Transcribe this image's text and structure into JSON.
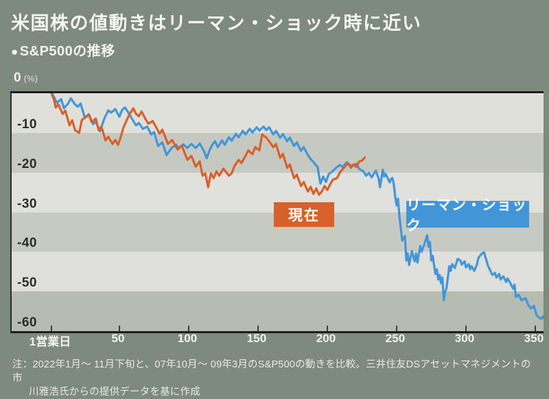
{
  "header": {
    "title": "米国株の値動きはリーマン・ショック時に近い",
    "subtitle_bullet": "●",
    "subtitle": "S&P500の推移"
  },
  "axis": {
    "y_zero": "0",
    "y_unit": "(%)",
    "y_tick_labels": [
      "-10",
      "-20",
      "-30",
      "-40",
      "-50",
      "-60"
    ],
    "x_tick_labels": [
      "1営業日",
      "50",
      "100",
      "150",
      "200",
      "250",
      "300",
      "350"
    ]
  },
  "annotations": {
    "current_label": "現在",
    "lehman_label": "リーマン・ショック"
  },
  "note": {
    "line1": "注：2022年1月～ 11月下旬と、07年10月～ 09年3月のS&P500の動きを比較。三井住友DSアセットマネジメントの市",
    "line2": "川雅浩氏からの提供データを基に作成"
  },
  "colors": {
    "background": "#7d8a7d",
    "current": "#d8602a",
    "lehman": "#4296d8",
    "axis_line": "#1c1e1c",
    "bands": [
      "#e0e0db",
      "#c6c9c1",
      "#e0e0dc",
      "#c7cac3",
      "#dfdfdb",
      "#b6bcb2"
    ]
  },
  "chart_data": {
    "type": "line",
    "title": "S&P500の推移",
    "xlabel": "営業日",
    "ylabel": "%",
    "xlim": [
      1,
      360
    ],
    "ylim": [
      -60,
      0
    ],
    "grid": "banded-horizontal",
    "legend_position": "inline-annotations",
    "x_tick_values": [
      1,
      50,
      100,
      150,
      200,
      250,
      300,
      350
    ],
    "y_tick_values": [
      0,
      -10,
      -20,
      -30,
      -40,
      -50,
      -60
    ],
    "series": [
      {
        "name": "リーマン・ショック",
        "color": "#4296d8",
        "points": [
          [
            1,
            0
          ],
          [
            2,
            -0.4
          ],
          [
            5,
            -2.4
          ],
          [
            8,
            -1.5
          ],
          [
            10,
            -3.8
          ],
          [
            13,
            -2.6
          ],
          [
            15,
            -1.3
          ],
          [
            18,
            -2.8
          ],
          [
            20,
            -3.4
          ],
          [
            22,
            -2.6
          ],
          [
            25,
            -6.1
          ],
          [
            28,
            -5.3
          ],
          [
            31,
            -7.8
          ],
          [
            33,
            -7.2
          ],
          [
            36,
            -9.6
          ],
          [
            39,
            -6.5
          ],
          [
            42,
            -4.3
          ],
          [
            44,
            -4.9
          ],
          [
            47,
            -4.0
          ],
          [
            50,
            -5.9
          ],
          [
            52,
            -4.2
          ],
          [
            54,
            -3.6
          ],
          [
            56,
            -4.6
          ],
          [
            59,
            -6.4
          ],
          [
            62,
            -8.1
          ],
          [
            64,
            -7.5
          ],
          [
            67,
            -9.0
          ],
          [
            70,
            -8.4
          ],
          [
            73,
            -10.4
          ],
          [
            75,
            -9.8
          ],
          [
            78,
            -13.3
          ],
          [
            81,
            -12.4
          ],
          [
            84,
            -15.6
          ],
          [
            86,
            -14.6
          ],
          [
            88,
            -13.7
          ],
          [
            91,
            -13.0
          ],
          [
            93,
            -13.9
          ],
          [
            96,
            -12.9
          ],
          [
            99,
            -13.8
          ],
          [
            102,
            -12.8
          ],
          [
            105,
            -13.8
          ],
          [
            108,
            -12.7
          ],
          [
            111,
            -14.6
          ],
          [
            113,
            -16.4
          ],
          [
            115,
            -14.4
          ],
          [
            117,
            -13.0
          ],
          [
            119,
            -12.1
          ],
          [
            121,
            -13.6
          ],
          [
            124,
            -11.9
          ],
          [
            126,
            -13.0
          ],
          [
            129,
            -11.1
          ],
          [
            131,
            -12.0
          ],
          [
            134,
            -10.2
          ],
          [
            136,
            -11.1
          ],
          [
            139,
            -9.5
          ],
          [
            141,
            -10.4
          ],
          [
            144,
            -9.0
          ],
          [
            146,
            -9.9
          ],
          [
            149,
            -8.6
          ],
          [
            151,
            -9.4
          ],
          [
            154,
            -8.4
          ],
          [
            156,
            -9.3
          ],
          [
            158,
            -8.6
          ],
          [
            161,
            -10.4
          ],
          [
            163,
            -9.5
          ],
          [
            166,
            -11.2
          ],
          [
            168,
            -10.3
          ],
          [
            171,
            -12.1
          ],
          [
            173,
            -11.2
          ],
          [
            176,
            -13.3
          ],
          [
            178,
            -12.4
          ],
          [
            181,
            -14.5
          ],
          [
            183,
            -13.6
          ],
          [
            186,
            -15.6
          ],
          [
            188,
            -16.6
          ],
          [
            190,
            -17.4
          ],
          [
            193,
            -18.6
          ],
          [
            195,
            -22.8
          ],
          [
            197,
            -21.0
          ],
          [
            199,
            -22.4
          ],
          [
            201,
            -20.4
          ],
          [
            204,
            -19.6
          ],
          [
            206,
            -18.9
          ],
          [
            209,
            -18.1
          ],
          [
            211,
            -18.6
          ],
          [
            214,
            -17.4
          ],
          [
            216,
            -18.0
          ],
          [
            218,
            -18.4
          ],
          [
            221,
            -17.8
          ],
          [
            223,
            -19.1
          ],
          [
            226,
            -19.7
          ],
          [
            228,
            -20.8
          ],
          [
            230,
            -20.1
          ],
          [
            232,
            -21.2
          ],
          [
            235,
            -19.5
          ],
          [
            237,
            -21.5
          ],
          [
            238,
            -23.7
          ],
          [
            240,
            -19.3
          ],
          [
            241,
            -21.0
          ],
          [
            242,
            -20.3
          ],
          [
            245,
            -22.5
          ],
          [
            246,
            -21.6
          ],
          [
            247,
            -21.4
          ],
          [
            248,
            -23.0
          ],
          [
            249,
            -26.3
          ],
          [
            250,
            -28.3
          ],
          [
            251,
            -26.6
          ],
          [
            252,
            -31.0
          ],
          [
            253,
            -34.0
          ],
          [
            254,
            -37.2
          ],
          [
            256,
            -36.0
          ],
          [
            257,
            -42.2
          ],
          [
            258,
            -40.4
          ],
          [
            259,
            -43.3
          ],
          [
            261,
            -39.8
          ],
          [
            263,
            -42.4
          ],
          [
            264,
            -40.4
          ],
          [
            265,
            -42.7
          ],
          [
            267,
            -38.5
          ],
          [
            268,
            -40.0
          ],
          [
            270,
            -38.1
          ],
          [
            272,
            -35.8
          ],
          [
            273,
            -38.7
          ],
          [
            274,
            -37.5
          ],
          [
            275,
            -42.2
          ],
          [
            276,
            -41.0
          ],
          [
            278,
            -45.6
          ],
          [
            279,
            -44.4
          ],
          [
            280,
            -47.0
          ],
          [
            281,
            -45.8
          ],
          [
            282,
            -47.9
          ],
          [
            283,
            -46.5
          ],
          [
            284,
            -52.2
          ],
          [
            285,
            -50.1
          ],
          [
            286,
            -49.1
          ],
          [
            288,
            -43.6
          ],
          [
            289,
            -44.8
          ],
          [
            290,
            -43.1
          ],
          [
            292,
            -44.1
          ],
          [
            294,
            -41.8
          ],
          [
            296,
            -42.2
          ],
          [
            297,
            -43.2
          ],
          [
            299,
            -42.4
          ],
          [
            300,
            -43.9
          ],
          [
            302,
            -43.1
          ],
          [
            303,
            -44.4
          ],
          [
            304,
            -43.6
          ],
          [
            306,
            -44.8
          ],
          [
            308,
            -43.1
          ],
          [
            309,
            -41.5
          ],
          [
            311,
            -40.6
          ],
          [
            313,
            -40.1
          ],
          [
            314,
            -41.3
          ],
          [
            315,
            -42.4
          ],
          [
            316,
            -43.6
          ],
          [
            318,
            -45.0
          ],
          [
            319,
            -45.8
          ],
          [
            321,
            -45.3
          ],
          [
            322,
            -46.5
          ],
          [
            324,
            -45.6
          ],
          [
            325,
            -47.0
          ],
          [
            327,
            -46.2
          ],
          [
            329,
            -47.6
          ],
          [
            330,
            -46.7
          ],
          [
            332,
            -47.9
          ],
          [
            334,
            -49.3
          ],
          [
            335,
            -48.3
          ],
          [
            336,
            -51.4
          ],
          [
            338,
            -50.8
          ],
          [
            340,
            -52.2
          ],
          [
            343,
            -51.7
          ],
          [
            345,
            -53.4
          ],
          [
            347,
            -54.3
          ],
          [
            349,
            -53.6
          ],
          [
            351,
            -56.0
          ],
          [
            354,
            -56.9
          ],
          [
            356,
            -56.2
          ],
          [
            357,
            -57.4
          ],
          [
            359,
            -57.0
          ]
        ]
      },
      {
        "name": "現在",
        "color": "#d8602a",
        "points": [
          [
            1,
            0
          ],
          [
            3,
            -1.8
          ],
          [
            4,
            -3.6
          ],
          [
            6,
            -2.8
          ],
          [
            9,
            -5.2
          ],
          [
            11,
            -4.4
          ],
          [
            14,
            -8.1
          ],
          [
            16,
            -6.8
          ],
          [
            18,
            -9.3
          ],
          [
            21,
            -10.0
          ],
          [
            23,
            -6.7
          ],
          [
            26,
            -6.0
          ],
          [
            28,
            -5.4
          ],
          [
            30,
            -7.3
          ],
          [
            33,
            -6.4
          ],
          [
            35,
            -9.3
          ],
          [
            37,
            -8.4
          ],
          [
            40,
            -11.9
          ],
          [
            42,
            -11.0
          ],
          [
            45,
            -12.8
          ],
          [
            47,
            -11.8
          ],
          [
            49,
            -13.0
          ],
          [
            51,
            -11.0
          ],
          [
            53,
            -8.6
          ],
          [
            55,
            -7.0
          ],
          [
            57,
            -5.5
          ],
          [
            60,
            -3.8
          ],
          [
            62,
            -5.2
          ],
          [
            64,
            -5.8
          ],
          [
            66,
            -4.6
          ],
          [
            69,
            -6.6
          ],
          [
            71,
            -7.7
          ],
          [
            74,
            -7.0
          ],
          [
            79,
            -10.2
          ],
          [
            81,
            -9.2
          ],
          [
            85,
            -12.8
          ],
          [
            88,
            -11.8
          ],
          [
            92,
            -14.2
          ],
          [
            95,
            -13.2
          ],
          [
            99,
            -16.8
          ],
          [
            102,
            -15.8
          ],
          [
            105,
            -18.5
          ],
          [
            108,
            -17.2
          ],
          [
            110,
            -20.8
          ],
          [
            112,
            -20.2
          ],
          [
            114,
            -23.7
          ],
          [
            116,
            -20.2
          ],
          [
            118,
            -21.4
          ],
          [
            120,
            -19.7
          ],
          [
            122,
            -20.8
          ],
          [
            125,
            -19.0
          ],
          [
            127,
            -19.9
          ],
          [
            129,
            -20.8
          ],
          [
            131,
            -20.2
          ],
          [
            133,
            -18.4
          ],
          [
            136,
            -16.8
          ],
          [
            138,
            -17.6
          ],
          [
            141,
            -15.8
          ],
          [
            143,
            -14.4
          ],
          [
            146,
            -15.4
          ],
          [
            148,
            -13.6
          ],
          [
            151,
            -14.4
          ],
          [
            153,
            -10.4
          ],
          [
            156,
            -11.2
          ],
          [
            158,
            -12.1
          ],
          [
            161,
            -13.6
          ],
          [
            163,
            -12.8
          ],
          [
            166,
            -16.3
          ],
          [
            168,
            -15.3
          ],
          [
            171,
            -18.8
          ],
          [
            173,
            -18.0
          ],
          [
            176,
            -21.4
          ],
          [
            178,
            -20.5
          ],
          [
            181,
            -23.4
          ],
          [
            183,
            -22.4
          ],
          [
            186,
            -24.8
          ],
          [
            188,
            -23.6
          ],
          [
            190,
            -25.4
          ],
          [
            192,
            -24.0
          ],
          [
            194,
            -25.6
          ],
          [
            196,
            -24.8
          ],
          [
            198,
            -23.4
          ],
          [
            200,
            -24.4
          ],
          [
            202,
            -23.0
          ],
          [
            204,
            -21.8
          ],
          [
            207,
            -21.4
          ],
          [
            209,
            -20.0
          ],
          [
            211,
            -19.2
          ],
          [
            213,
            -18.4
          ],
          [
            215,
            -17.6
          ],
          [
            217,
            -18.8
          ],
          [
            219,
            -17.9
          ],
          [
            221,
            -18.6
          ],
          [
            223,
            -17.2
          ],
          [
            225,
            -17.0
          ],
          [
            227,
            -16.2
          ]
        ]
      }
    ]
  }
}
